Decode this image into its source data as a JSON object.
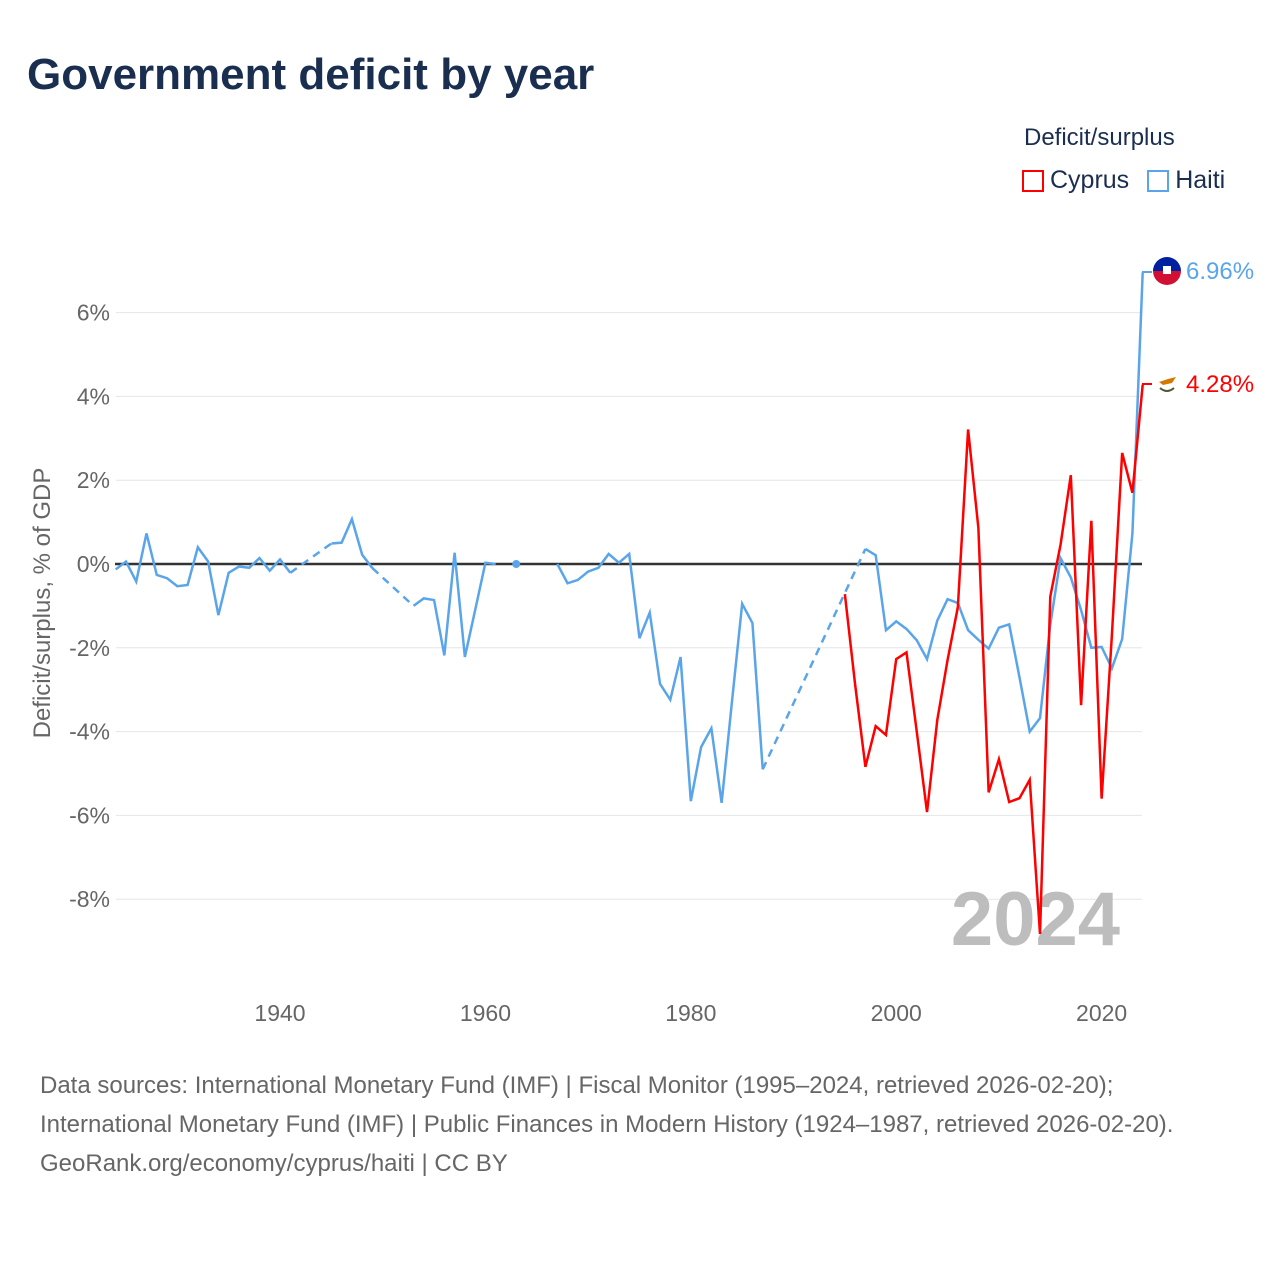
{
  "title": "Government deficit by year",
  "legend": {
    "title": "Deficit/surplus",
    "items": [
      {
        "label": "Cyprus",
        "color": "#ff0000"
      },
      {
        "label": "Haiti",
        "color": "#5aa5ea"
      }
    ]
  },
  "year_watermark": "2024",
  "end_labels": {
    "haiti": "6.96%",
    "cyprus": "4.28%"
  },
  "footer": {
    "sources": "Data sources: International Monetary Fund (IMF) | Fiscal Monitor (1995–2024, retrieved 2026-02-20); International Monetary Fund (IMF) | Public Finances in Modern History (1924–1987, retrieved 2026-02-20).",
    "credit": "GeoRank.org/economy/cyprus/haiti | CC BY"
  },
  "chart_data": {
    "type": "line",
    "title": "Government deficit by year",
    "xlabel": "",
    "ylabel": "Deficit/surplus, % of GDP",
    "xlim": [
      1924,
      2024
    ],
    "ylim": [
      -9.5,
      7.5
    ],
    "xticks": [
      1940,
      1960,
      1980,
      2000,
      2020
    ],
    "xtick_labels": [
      "1940",
      "1960",
      "1980",
      "2000",
      "2020"
    ],
    "yticks": [
      -8,
      -6,
      -4,
      -2,
      0,
      2,
      4,
      6
    ],
    "ytick_labels": [
      "-8%",
      "-6%",
      "-4%",
      "-2%",
      "0%",
      "2%",
      "4%",
      "6%"
    ],
    "grid": true,
    "legend_position": "top-right",
    "series": [
      {
        "name": "Haiti",
        "color": "#5aa5ea",
        "points": [
          [
            1924,
            -0.13
          ],
          [
            1925,
            0.06
          ],
          [
            1926,
            -0.42
          ],
          [
            1927,
            0.73
          ],
          [
            1928,
            -0.26
          ],
          [
            1929,
            -0.34
          ],
          [
            1930,
            -0.53
          ],
          [
            1931,
            -0.5
          ],
          [
            1932,
            0.4
          ],
          [
            1933,
            0.06
          ],
          [
            1934,
            -1.22
          ],
          [
            1935,
            -0.21
          ],
          [
            1936,
            -0.06
          ],
          [
            1937,
            -0.09
          ],
          [
            1938,
            0.14
          ],
          [
            1939,
            -0.16
          ],
          [
            1940,
            0.11
          ],
          [
            1941,
            -0.21
          ],
          [
            1945,
            0.49
          ],
          [
            1946,
            0.51
          ],
          [
            1947,
            1.07
          ],
          [
            1948,
            0.22
          ],
          [
            1949,
            -0.1
          ],
          [
            1953,
            -1.0
          ],
          [
            1954,
            -0.82
          ],
          [
            1955,
            -0.86
          ],
          [
            1956,
            -2.18
          ],
          [
            1957,
            0.27
          ],
          [
            1958,
            -2.22
          ],
          [
            1959,
            -1.1
          ],
          [
            1960,
            0.03
          ],
          [
            1961,
            0.0
          ],
          [
            1963,
            0.0
          ],
          [
            1967,
            0.0
          ],
          [
            1968,
            -0.46
          ],
          [
            1969,
            -0.38
          ],
          [
            1970,
            -0.18
          ],
          [
            1971,
            -0.09
          ],
          [
            1972,
            0.24
          ],
          [
            1973,
            0.03
          ],
          [
            1974,
            0.24
          ],
          [
            1975,
            -1.77
          ],
          [
            1976,
            -1.16
          ],
          [
            1977,
            -2.86
          ],
          [
            1978,
            -3.24
          ],
          [
            1979,
            -2.22
          ],
          [
            1980,
            -5.66
          ],
          [
            1981,
            -4.37
          ],
          [
            1982,
            -3.92
          ],
          [
            1983,
            -5.7
          ],
          [
            1984,
            -3.3
          ],
          [
            1985,
            -0.95
          ],
          [
            1986,
            -1.41
          ],
          [
            1987,
            -4.9
          ],
          [
            1997,
            0.36
          ],
          [
            1998,
            0.21
          ],
          [
            1999,
            -1.58
          ],
          [
            2000,
            -1.37
          ],
          [
            2001,
            -1.55
          ],
          [
            2002,
            -1.82
          ],
          [
            2003,
            -2.27
          ],
          [
            2004,
            -1.35
          ],
          [
            2005,
            -0.84
          ],
          [
            2006,
            -0.93
          ],
          [
            2007,
            -1.58
          ],
          [
            2008,
            -1.81
          ],
          [
            2009,
            -2.02
          ],
          [
            2010,
            -1.52
          ],
          [
            2011,
            -1.44
          ],
          [
            2012,
            -2.7
          ],
          [
            2013,
            -4.0
          ],
          [
            2014,
            -3.68
          ],
          [
            2015,
            -1.45
          ],
          [
            2016,
            0.14
          ],
          [
            2017,
            -0.32
          ],
          [
            2018,
            -1.1
          ],
          [
            2019,
            -2.0
          ],
          [
            2020,
            -1.98
          ],
          [
            2021,
            -2.49
          ],
          [
            2022,
            -1.79
          ],
          [
            2023,
            0.73
          ],
          [
            2024,
            6.96
          ]
        ]
      },
      {
        "name": "Cyprus",
        "color": "#ff0000",
        "points": [
          [
            1995,
            -0.72
          ],
          [
            1996,
            -2.88
          ],
          [
            1997,
            -4.84
          ],
          [
            1998,
            -3.87
          ],
          [
            1999,
            -4.08
          ],
          [
            2000,
            -2.27
          ],
          [
            2001,
            -2.11
          ],
          [
            2002,
            -4.0
          ],
          [
            2003,
            -5.92
          ],
          [
            2004,
            -3.72
          ],
          [
            2005,
            -2.29
          ],
          [
            2006,
            -1.03
          ],
          [
            2007,
            3.21
          ],
          [
            2008,
            0.86
          ],
          [
            2009,
            -5.45
          ],
          [
            2010,
            -4.66
          ],
          [
            2011,
            -5.68
          ],
          [
            2012,
            -5.59
          ],
          [
            2013,
            -5.15
          ],
          [
            2014,
            -8.83
          ],
          [
            2015,
            -0.78
          ],
          [
            2016,
            0.46
          ],
          [
            2017,
            2.12
          ],
          [
            2018,
            -3.37
          ],
          [
            2019,
            1.03
          ],
          [
            2020,
            -5.6
          ],
          [
            2021,
            -1.7
          ],
          [
            2022,
            2.65
          ],
          [
            2023,
            1.7
          ],
          [
            2024,
            4.28
          ]
        ]
      }
    ]
  }
}
